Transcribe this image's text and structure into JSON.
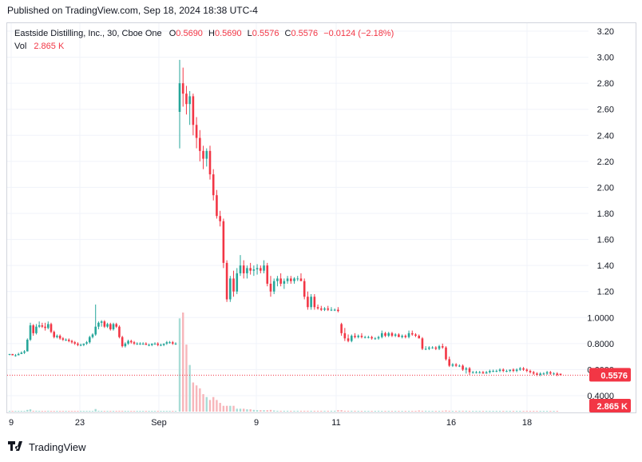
{
  "published": "Published on TradingView.com, Sep 18, 2024 18:38 UTC-4",
  "legend": {
    "symbol": "Eastside Distilling, Inc., 30, Cboe One",
    "o_label": "O",
    "o": "0.5690",
    "h_label": "H",
    "h": "0.5690",
    "l_label": "L",
    "l": "0.5576",
    "c_label": "C",
    "c": "0.5576",
    "change": "−0.0124 (−2.18%)",
    "vol_label": "Vol",
    "vol": "2.865 K"
  },
  "brand": "TradingView",
  "colors": {
    "up": "#26a69a",
    "down": "#f23645",
    "up_vol": "#a8dcd6",
    "down_vol": "#f7b6ba",
    "grid": "#f0f3fa"
  },
  "chart_data": {
    "type": "candlestick",
    "y_ticks": [
      "3.20",
      "3.00",
      "2.80",
      "2.60",
      "2.40",
      "2.20",
      "2.00",
      "1.80",
      "1.60",
      "1.40",
      "1.20",
      "1.0000",
      "0.8000",
      "0.6000",
      "0.4000"
    ],
    "ylim": [
      0.33,
      3.24
    ],
    "x_ticks": [
      "9",
      "23",
      "Sep",
      "9",
      "11",
      "16",
      "18"
    ],
    "last_price": "0.5576",
    "last_volume": "2.865 K",
    "candles": [
      [
        0.72,
        0.72,
        0.71,
        0.72
      ],
      [
        0.72,
        0.72,
        0.71,
        0.71
      ],
      [
        0.71,
        0.72,
        0.7,
        0.71
      ],
      [
        0.71,
        0.73,
        0.71,
        0.72
      ],
      [
        0.72,
        0.74,
        0.72,
        0.73
      ],
      [
        0.73,
        0.75,
        0.72,
        0.74
      ],
      [
        0.74,
        0.84,
        0.74,
        0.83
      ],
      [
        0.83,
        0.96,
        0.82,
        0.94
      ],
      [
        0.94,
        0.95,
        0.86,
        0.88
      ],
      [
        0.88,
        0.95,
        0.87,
        0.93
      ],
      [
        0.93,
        0.97,
        0.92,
        0.94
      ],
      [
        0.94,
        0.96,
        0.92,
        0.93
      ],
      [
        0.93,
        0.96,
        0.9,
        0.92
      ],
      [
        0.92,
        0.97,
        0.91,
        0.95
      ],
      [
        0.95,
        0.96,
        0.88,
        0.89
      ],
      [
        0.89,
        0.9,
        0.84,
        0.85
      ],
      [
        0.85,
        0.87,
        0.84,
        0.86
      ],
      [
        0.86,
        0.87,
        0.83,
        0.84
      ],
      [
        0.84,
        0.85,
        0.82,
        0.83
      ],
      [
        0.83,
        0.84,
        0.82,
        0.83
      ],
      [
        0.83,
        0.84,
        0.81,
        0.82
      ],
      [
        0.82,
        0.83,
        0.8,
        0.81
      ],
      [
        0.81,
        0.82,
        0.79,
        0.8
      ],
      [
        0.8,
        0.81,
        0.78,
        0.79
      ],
      [
        0.79,
        0.8,
        0.78,
        0.79
      ],
      [
        0.79,
        0.8,
        0.78,
        0.8
      ],
      [
        0.8,
        0.82,
        0.79,
        0.81
      ],
      [
        0.81,
        0.86,
        0.8,
        0.85
      ],
      [
        0.85,
        0.88,
        0.84,
        0.87
      ],
      [
        0.87,
        1.1,
        0.86,
        0.93
      ],
      [
        0.93,
        0.97,
        0.91,
        0.96
      ],
      [
        0.96,
        0.98,
        0.93,
        0.97
      ],
      [
        0.97,
        0.98,
        0.92,
        0.93
      ],
      [
        0.93,
        0.96,
        0.92,
        0.95
      ],
      [
        0.95,
        0.96,
        0.9,
        0.91
      ],
      [
        0.91,
        0.96,
        0.9,
        0.95
      ],
      [
        0.95,
        0.96,
        0.92,
        0.93
      ],
      [
        0.93,
        0.94,
        0.84,
        0.85
      ],
      [
        0.85,
        0.86,
        0.77,
        0.78
      ],
      [
        0.78,
        0.81,
        0.77,
        0.8
      ],
      [
        0.8,
        0.83,
        0.79,
        0.82
      ],
      [
        0.82,
        0.83,
        0.8,
        0.81
      ],
      [
        0.81,
        0.82,
        0.79,
        0.8
      ],
      [
        0.8,
        0.81,
        0.79,
        0.8
      ],
      [
        0.8,
        0.81,
        0.79,
        0.8
      ],
      [
        0.8,
        0.81,
        0.79,
        0.8
      ],
      [
        0.8,
        0.81,
        0.79,
        0.79
      ],
      [
        0.79,
        0.8,
        0.78,
        0.79
      ],
      [
        0.79,
        0.8,
        0.78,
        0.8
      ],
      [
        0.8,
        0.81,
        0.79,
        0.8
      ],
      [
        0.8,
        0.81,
        0.78,
        0.79
      ],
      [
        0.79,
        0.8,
        0.78,
        0.79
      ],
      [
        0.79,
        0.8,
        0.78,
        0.8
      ],
      [
        0.8,
        0.82,
        0.79,
        0.81
      ],
      [
        0.81,
        0.82,
        0.8,
        0.81
      ],
      [
        0.81,
        0.82,
        0.79,
        0.8
      ],
      [
        0.8,
        0.81,
        0.79,
        0.8
      ],
      [
        2.58,
        2.98,
        2.3,
        2.8
      ],
      [
        2.8,
        2.92,
        2.62,
        2.72
      ],
      [
        2.72,
        2.78,
        2.56,
        2.64
      ],
      [
        2.64,
        2.74,
        2.48,
        2.7
      ],
      [
        2.7,
        2.72,
        2.4,
        2.48
      ],
      [
        2.48,
        2.54,
        2.3,
        2.38
      ],
      [
        2.38,
        2.44,
        2.2,
        2.28
      ],
      [
        2.28,
        2.32,
        2.14,
        2.22
      ],
      [
        2.22,
        2.3,
        2.16,
        2.28
      ],
      [
        2.28,
        2.32,
        2.06,
        2.1
      ],
      [
        2.1,
        2.14,
        1.9,
        1.94
      ],
      [
        1.94,
        1.98,
        1.76,
        1.78
      ],
      [
        1.78,
        1.82,
        1.7,
        1.74
      ],
      [
        1.74,
        1.76,
        1.38,
        1.42
      ],
      [
        1.42,
        1.44,
        1.12,
        1.14
      ],
      [
        1.14,
        1.32,
        1.12,
        1.3
      ],
      [
        1.3,
        1.36,
        1.16,
        1.2
      ],
      [
        1.2,
        1.38,
        1.18,
        1.34
      ],
      [
        1.34,
        1.48,
        1.32,
        1.4
      ],
      [
        1.4,
        1.44,
        1.3,
        1.34
      ],
      [
        1.34,
        1.4,
        1.3,
        1.38
      ],
      [
        1.38,
        1.42,
        1.33,
        1.36
      ],
      [
        1.36,
        1.4,
        1.32,
        1.37
      ],
      [
        1.37,
        1.41,
        1.33,
        1.38
      ],
      [
        1.38,
        1.4,
        1.34,
        1.36
      ],
      [
        1.36,
        1.44,
        1.34,
        1.4
      ],
      [
        1.4,
        1.42,
        1.24,
        1.26
      ],
      [
        1.26,
        1.32,
        1.16,
        1.2
      ],
      [
        1.2,
        1.3,
        1.18,
        1.28
      ],
      [
        1.28,
        1.32,
        1.24,
        1.3
      ],
      [
        1.3,
        1.34,
        1.24,
        1.26
      ],
      [
        1.26,
        1.3,
        1.22,
        1.28
      ],
      [
        1.28,
        1.32,
        1.26,
        1.3
      ],
      [
        1.3,
        1.32,
        1.26,
        1.28
      ],
      [
        1.28,
        1.31,
        1.26,
        1.3
      ],
      [
        1.3,
        1.32,
        1.28,
        1.3
      ],
      [
        1.3,
        1.34,
        1.28,
        1.28
      ],
      [
        1.28,
        1.3,
        1.14,
        1.16
      ],
      [
        1.16,
        1.2,
        1.06,
        1.08
      ],
      [
        1.08,
        1.18,
        1.06,
        1.16
      ],
      [
        1.16,
        1.18,
        1.06,
        1.08
      ],
      [
        1.08,
        1.1,
        1.06,
        1.07
      ],
      [
        1.07,
        1.09,
        1.05,
        1.06
      ],
      [
        1.06,
        1.08,
        1.05,
        1.07
      ],
      [
        1.07,
        1.09,
        1.05,
        1.06
      ],
      [
        1.06,
        1.08,
        1.05,
        1.06
      ],
      [
        1.06,
        1.07,
        1.05,
        1.06
      ],
      [
        1.06,
        1.08,
        1.04,
        1.05
      ],
      [
        0.95,
        0.96,
        0.86,
        0.88
      ],
      [
        0.88,
        0.92,
        0.82,
        0.84
      ],
      [
        0.84,
        0.87,
        0.81,
        0.82
      ],
      [
        0.82,
        0.87,
        0.81,
        0.86
      ],
      [
        0.86,
        0.88,
        0.84,
        0.85
      ],
      [
        0.85,
        0.87,
        0.84,
        0.86
      ],
      [
        0.86,
        0.88,
        0.84,
        0.85
      ],
      [
        0.85,
        0.86,
        0.84,
        0.85
      ],
      [
        0.85,
        0.86,
        0.84,
        0.85
      ],
      [
        0.85,
        0.86,
        0.83,
        0.84
      ],
      [
        0.84,
        0.85,
        0.83,
        0.84
      ],
      [
        0.84,
        0.86,
        0.83,
        0.85
      ],
      [
        0.85,
        0.9,
        0.84,
        0.88
      ],
      [
        0.88,
        0.89,
        0.85,
        0.86
      ],
      [
        0.86,
        0.89,
        0.85,
        0.88
      ],
      [
        0.88,
        0.89,
        0.85,
        0.86
      ],
      [
        0.86,
        0.88,
        0.85,
        0.87
      ],
      [
        0.87,
        0.88,
        0.85,
        0.85
      ],
      [
        0.85,
        0.87,
        0.84,
        0.86
      ],
      [
        0.86,
        0.87,
        0.84,
        0.85
      ],
      [
        0.85,
        0.9,
        0.84,
        0.88
      ],
      [
        0.88,
        0.9,
        0.86,
        0.87
      ],
      [
        0.87,
        0.88,
        0.85,
        0.86
      ],
      [
        0.86,
        0.87,
        0.84,
        0.84
      ],
      [
        0.84,
        0.85,
        0.75,
        0.76
      ],
      [
        0.76,
        0.78,
        0.75,
        0.76
      ],
      [
        0.76,
        0.78,
        0.75,
        0.77
      ],
      [
        0.77,
        0.78,
        0.76,
        0.77
      ],
      [
        0.77,
        0.78,
        0.75,
        0.76
      ],
      [
        0.76,
        0.79,
        0.75,
        0.78
      ],
      [
        0.78,
        0.8,
        0.76,
        0.77
      ],
      [
        0.77,
        0.78,
        0.67,
        0.68
      ],
      [
        0.68,
        0.7,
        0.62,
        0.63
      ],
      [
        0.63,
        0.65,
        0.62,
        0.64
      ],
      [
        0.64,
        0.65,
        0.62,
        0.63
      ],
      [
        0.63,
        0.64,
        0.62,
        0.63
      ],
      [
        0.63,
        0.64,
        0.59,
        0.6
      ],
      [
        0.6,
        0.62,
        0.57,
        0.61
      ],
      [
        0.61,
        0.62,
        0.56,
        0.58
      ],
      [
        0.58,
        0.59,
        0.57,
        0.58
      ],
      [
        0.58,
        0.59,
        0.57,
        0.58
      ],
      [
        0.58,
        0.59,
        0.57,
        0.58
      ],
      [
        0.58,
        0.59,
        0.57,
        0.57
      ],
      [
        0.57,
        0.59,
        0.57,
        0.58
      ],
      [
        0.58,
        0.6,
        0.57,
        0.59
      ],
      [
        0.59,
        0.6,
        0.58,
        0.59
      ],
      [
        0.59,
        0.6,
        0.58,
        0.59
      ],
      [
        0.59,
        0.61,
        0.58,
        0.6
      ],
      [
        0.6,
        0.61,
        0.58,
        0.59
      ],
      [
        0.59,
        0.6,
        0.58,
        0.59
      ],
      [
        0.59,
        0.6,
        0.58,
        0.6
      ],
      [
        0.6,
        0.61,
        0.58,
        0.59
      ],
      [
        0.59,
        0.61,
        0.58,
        0.6
      ],
      [
        0.6,
        0.62,
        0.59,
        0.61
      ],
      [
        0.61,
        0.62,
        0.59,
        0.6
      ],
      [
        0.6,
        0.61,
        0.58,
        0.59
      ],
      [
        0.59,
        0.6,
        0.57,
        0.58
      ],
      [
        0.58,
        0.59,
        0.56,
        0.57
      ],
      [
        0.57,
        0.58,
        0.55,
        0.56
      ],
      [
        0.56,
        0.58,
        0.55,
        0.57
      ],
      [
        0.57,
        0.58,
        0.56,
        0.57
      ],
      [
        0.57,
        0.59,
        0.56,
        0.58
      ],
      [
        0.58,
        0.59,
        0.56,
        0.57
      ],
      [
        0.57,
        0.58,
        0.56,
        0.57
      ],
      [
        0.57,
        0.58,
        0.55,
        0.56
      ],
      [
        0.569,
        0.569,
        0.5576,
        0.5576
      ]
    ],
    "volume": [
      0.2,
      0.1,
      0.1,
      0.1,
      0.1,
      0.1,
      0.6,
      0.8,
      0.3,
      0.3,
      0.2,
      0.2,
      0.2,
      0.3,
      0.2,
      0.2,
      0.1,
      0.1,
      0.1,
      0.1,
      0.1,
      0.1,
      0.1,
      0.1,
      0.1,
      0.1,
      0.1,
      0.2,
      0.2,
      0.9,
      0.3,
      0.2,
      0.2,
      0.2,
      0.2,
      0.2,
      0.2,
      0.3,
      0.3,
      0.1,
      0.1,
      0.1,
      0.1,
      0.1,
      0.1,
      0.1,
      0.1,
      0.1,
      0.1,
      0.1,
      0.1,
      0.1,
      0.1,
      0.1,
      0.1,
      0.1,
      0.1,
      32,
      34,
      23,
      16,
      10,
      9,
      8,
      6,
      5,
      4,
      5,
      4,
      3,
      2,
      2,
      2,
      2,
      1,
      1,
      1,
      0.8,
      0.8,
      0.6,
      0.5,
      0.5,
      0.5,
      0.5,
      0.6,
      0.4,
      0.3,
      0.3,
      0.3,
      0.3,
      0.3,
      0.3,
      0.3,
      0.3,
      0.3,
      0.3,
      0.3,
      0.3,
      0.3,
      0.3,
      0.3,
      0.3,
      0.3,
      0.3,
      0.5,
      0.5,
      0.3,
      0.3,
      0.3,
      0.3,
      0.2,
      0.2,
      0.2,
      0.2,
      0.2,
      0.2,
      0.3,
      0.2,
      0.2,
      0.2,
      0.2,
      0.2,
      0.2,
      0.2,
      0.2,
      0.2,
      0.2,
      0.2,
      0.4,
      0.3,
      0.3,
      0.2,
      0.2,
      0.2,
      0.2,
      0.3,
      0.4,
      0.3,
      0.2,
      0.2,
      0.3,
      0.3,
      0.3,
      0.2,
      0.2,
      0.2,
      0.2,
      0.2,
      0.2,
      0.2,
      0.2,
      0.2,
      0.2,
      0.2,
      0.2,
      0.2,
      0.2,
      0.2,
      0.2,
      0.2,
      0.2,
      0.2,
      0.2,
      0.2,
      0.2,
      0.2,
      0.2,
      0.2,
      0.2,
      0.1
    ]
  }
}
